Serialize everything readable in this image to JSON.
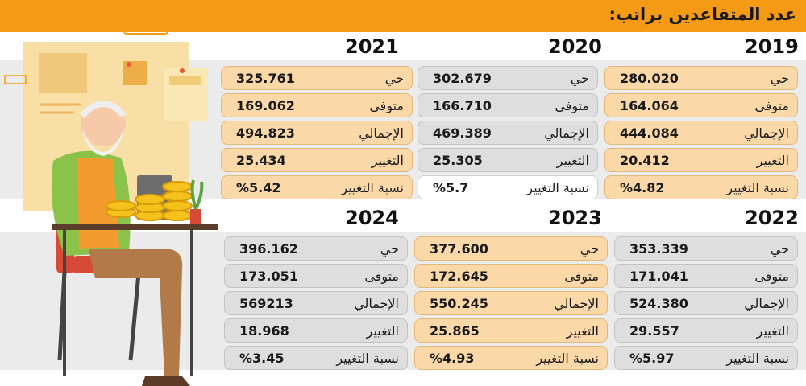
{
  "title": "عدد المتقاعدين براتب:",
  "labels": {
    "alive": "حي",
    "deceased": "متوفى",
    "total": "الإجمالي",
    "change": "التغيير",
    "change_pct": "نسبة التغيير"
  },
  "colors": {
    "header": "#f59a14",
    "band": "#ebebeb",
    "orange_row": "#fbd8a8",
    "gray_row": "#dedede"
  },
  "years": {
    "y2019": {
      "year": "2019",
      "alive": "280.020",
      "deceased": "164.064",
      "total": "444.084",
      "change": "20.412",
      "change_pct": "%4.82"
    },
    "y2020": {
      "year": "2020",
      "alive": "302.679",
      "deceased": "166.710",
      "total": "469.389",
      "change": "25.305",
      "change_pct": "%5.7"
    },
    "y2021": {
      "year": "2021",
      "alive": "325.761",
      "deceased": "169.062",
      "total": "494.823",
      "change": "25.434",
      "change_pct": "%5.42"
    },
    "y2022": {
      "year": "2022",
      "alive": "353.339",
      "deceased": "171.041",
      "total": "524.380",
      "change": "29.557",
      "change_pct": "%5.97"
    },
    "y2023": {
      "year": "2023",
      "alive": "377.600",
      "deceased": "172.645",
      "total": "550.245",
      "change": "25.865",
      "change_pct": "%4.93"
    },
    "y2024": {
      "year": "2024",
      "alive": "396.162",
      "deceased": "173.051",
      "total": "569213",
      "change": "18.968",
      "change_pct": "%3.45"
    }
  }
}
